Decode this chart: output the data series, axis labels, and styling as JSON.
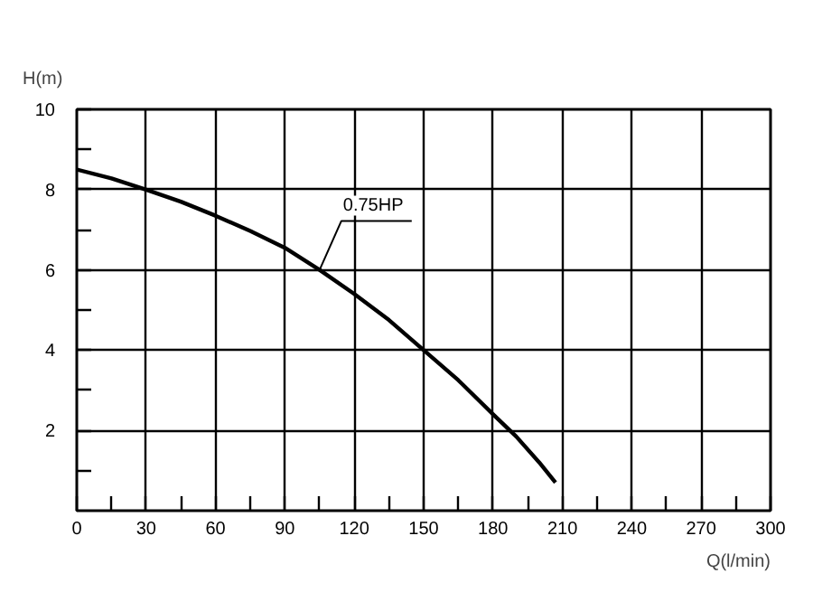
{
  "chart_data": {
    "type": "line",
    "xlabel": "Q(l/min)",
    "ylabel": "H(m)",
    "x": [
      0,
      15,
      30,
      45,
      60,
      75,
      90,
      105,
      120,
      135,
      150,
      165,
      180,
      190,
      200,
      207
    ],
    "series": [
      {
        "name": "0.75HP",
        "color": "#000000",
        "values": [
          8.5,
          8.28,
          8.0,
          7.7,
          7.35,
          6.97,
          6.55,
          6.0,
          5.4,
          4.75,
          4.0,
          3.25,
          2.4,
          1.85,
          1.2,
          0.7
        ]
      }
    ],
    "xlim": [
      0,
      300
    ],
    "ylim": [
      0,
      10
    ],
    "xticks": [
      0,
      {
        "value": 15,
        "label": null
      },
      30,
      {
        "value": 45,
        "label": null
      },
      60,
      {
        "value": 75,
        "label": null
      },
      90,
      {
        "value": 105,
        "label": null
      },
      120,
      {
        "value": 135,
        "label": null
      },
      150,
      {
        "value": 165,
        "label": null
      },
      180,
      {
        "value": 195,
        "label": null
      },
      210,
      {
        "value": 225,
        "label": null
      },
      240,
      {
        "value": 255,
        "label": null
      },
      270,
      {
        "value": 285,
        "label": null
      },
      300
    ],
    "yticks": [
      {
        "value": 1,
        "label": null
      },
      2,
      {
        "value": 3,
        "label": null
      },
      4,
      {
        "value": 5,
        "label": null
      },
      6,
      {
        "value": 7,
        "label": null
      },
      8,
      {
        "value": 9,
        "label": null
      },
      10
    ],
    "grid": true,
    "marker": "none",
    "line_style": "solid"
  }
}
